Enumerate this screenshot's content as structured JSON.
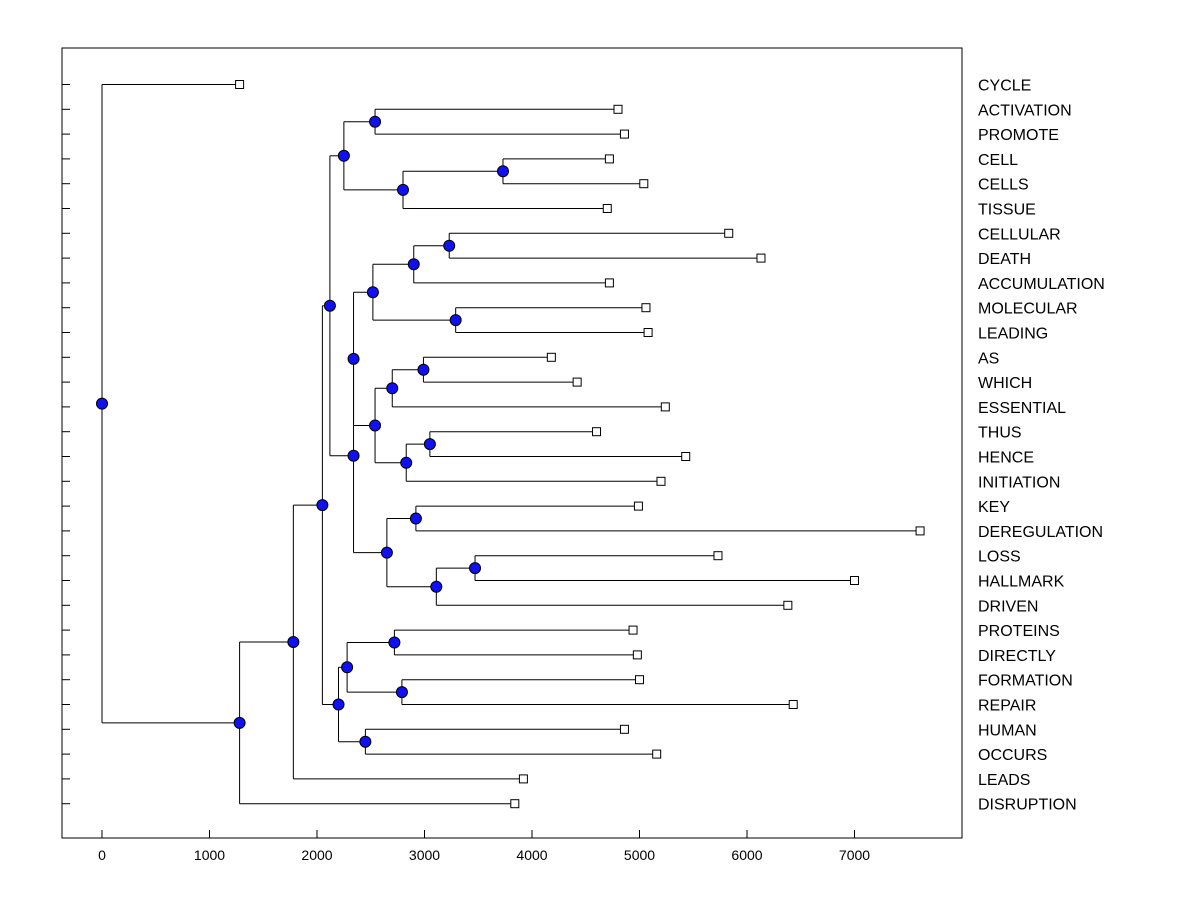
{
  "chart_data": {
    "type": "dendrogram",
    "xlim": [
      -370,
      8000
    ],
    "x_ticks": [
      0,
      1000,
      2000,
      3000,
      4000,
      5000,
      6000,
      7000
    ],
    "leaves": [
      {
        "label": "CYCLE",
        "x": 1280
      },
      {
        "label": "ACTIVATION",
        "x": 4800
      },
      {
        "label": "PROMOTE",
        "x": 4860
      },
      {
        "label": "CELL",
        "x": 4720
      },
      {
        "label": "CELLS",
        "x": 5040
      },
      {
        "label": "TISSUE",
        "x": 4700
      },
      {
        "label": "CELLULAR",
        "x": 5830
      },
      {
        "label": "DEATH",
        "x": 6130
      },
      {
        "label": "ACCUMULATION",
        "x": 4720
      },
      {
        "label": "MOLECULAR",
        "x": 5060
      },
      {
        "label": "LEADING",
        "x": 5080
      },
      {
        "label": "AS",
        "x": 4180
      },
      {
        "label": "WHICH",
        "x": 4420
      },
      {
        "label": "ESSENTIAL",
        "x": 5240
      },
      {
        "label": "THUS",
        "x": 4600
      },
      {
        "label": "HENCE",
        "x": 5430
      },
      {
        "label": "INITIATION",
        "x": 5200
      },
      {
        "label": "KEY",
        "x": 4990
      },
      {
        "label": "DEREGULATION",
        "x": 7610
      },
      {
        "label": "LOSS",
        "x": 5730
      },
      {
        "label": "HALLMARK",
        "x": 7000
      },
      {
        "label": "DRIVEN",
        "x": 6380
      },
      {
        "label": "PROTEINS",
        "x": 4940
      },
      {
        "label": "DIRECTLY",
        "x": 4980
      },
      {
        "label": "FORMATION",
        "x": 5000
      },
      {
        "label": "REPAIR",
        "x": 6430
      },
      {
        "label": "HUMAN",
        "x": 4860
      },
      {
        "label": "OCCURS",
        "x": 5160
      },
      {
        "label": "LEADS",
        "x": 3920
      },
      {
        "label": "DISRUPTION",
        "x": 3840
      }
    ],
    "merges": [
      {
        "id": "m1",
        "x": 2540,
        "a": 1,
        "b": 2
      },
      {
        "id": "m2",
        "x": 3730,
        "a": 3,
        "b": 4
      },
      {
        "id": "m3",
        "x": 2800,
        "a": "m2",
        "b": 5
      },
      {
        "id": "m4",
        "x": 2250,
        "a": "m1",
        "b": "m3"
      },
      {
        "id": "m5",
        "x": 3230,
        "a": 6,
        "b": 7
      },
      {
        "id": "m6",
        "x": 2900,
        "a": "m5",
        "b": 8
      },
      {
        "id": "m7",
        "x": 3290,
        "a": 9,
        "b": 10
      },
      {
        "id": "m8",
        "x": 2520,
        "a": "m6",
        "b": "m7"
      },
      {
        "id": "m9",
        "x": 2990,
        "a": 11,
        "b": 12
      },
      {
        "id": "m10",
        "x": 2700,
        "a": "m9",
        "b": 13
      },
      {
        "id": "m11",
        "x": 3050,
        "a": 14,
        "b": 15
      },
      {
        "id": "m12",
        "x": 2830,
        "a": "m11",
        "b": 16
      },
      {
        "id": "m13",
        "x": 2540,
        "a": "m10",
        "b": "m12"
      },
      {
        "id": "m14",
        "x": 2340,
        "a": "m8",
        "b": "m13"
      },
      {
        "id": "m15",
        "x": 2920,
        "a": 17,
        "b": 18
      },
      {
        "id": "m16",
        "x": 3470,
        "a": 19,
        "b": 20
      },
      {
        "id": "m17",
        "x": 3110,
        "a": "m16",
        "b": 21
      },
      {
        "id": "m18",
        "x": 2650,
        "a": "m15",
        "b": "m17"
      },
      {
        "id": "m19",
        "x": 2340,
        "a": "m14",
        "b": "m18"
      },
      {
        "id": "m20",
        "x": 2120,
        "a": "m4",
        "b": "m19"
      },
      {
        "id": "m21",
        "x": 2720,
        "a": 22,
        "b": 23
      },
      {
        "id": "m22",
        "x": 2790,
        "a": 24,
        "b": 25
      },
      {
        "id": "m23",
        "x": 2280,
        "a": "m21",
        "b": "m22"
      },
      {
        "id": "m24",
        "x": 2450,
        "a": 26,
        "b": 27
      },
      {
        "id": "m25",
        "x": 2200,
        "a": "m23",
        "b": "m24"
      },
      {
        "id": "m26",
        "x": 2050,
        "a": "m20",
        "b": "m25"
      },
      {
        "id": "m27",
        "x": 1780,
        "a": "m26",
        "b": 28
      },
      {
        "id": "m28",
        "x": 1280,
        "a": "m27",
        "b": 29
      },
      {
        "id": "m29",
        "x": 0,
        "a": 0,
        "b": "m28"
      }
    ]
  }
}
